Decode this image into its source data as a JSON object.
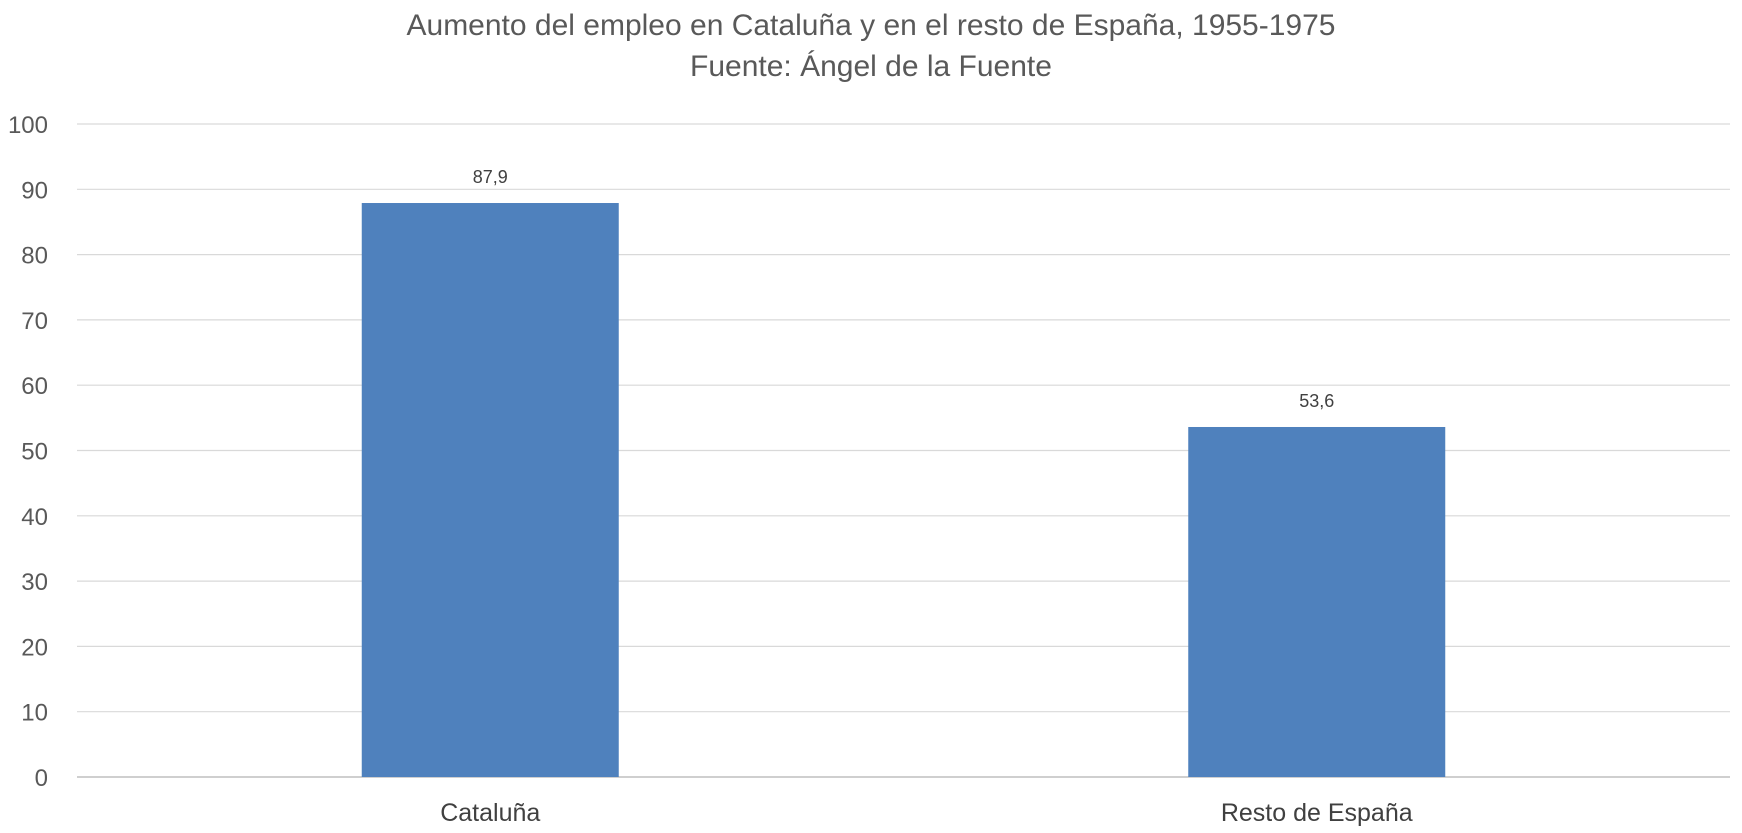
{
  "chart_data": {
    "type": "bar",
    "title": "Aumento del empleo en Cataluña y en el resto de España, 1955-1975",
    "subtitle": "Fuente: Ángel de la Fuente",
    "categories": [
      "Cataluña",
      "Resto de España"
    ],
    "values": [
      87.9,
      53.6
    ],
    "data_labels": [
      "87,9",
      "53,6"
    ],
    "ylim": [
      0,
      100
    ],
    "y_ticks": [
      0,
      10,
      20,
      30,
      40,
      50,
      60,
      70,
      80,
      90,
      100
    ],
    "y_tick_labels": [
      "0",
      "10",
      "20",
      "30",
      "40",
      "50",
      "60",
      "70",
      "80",
      "90",
      "100"
    ],
    "grid": true,
    "legend": "none",
    "colors": {
      "bar": "#4f81bd",
      "grid": "#d9d9d9",
      "axis": "#bfbfbf"
    }
  }
}
